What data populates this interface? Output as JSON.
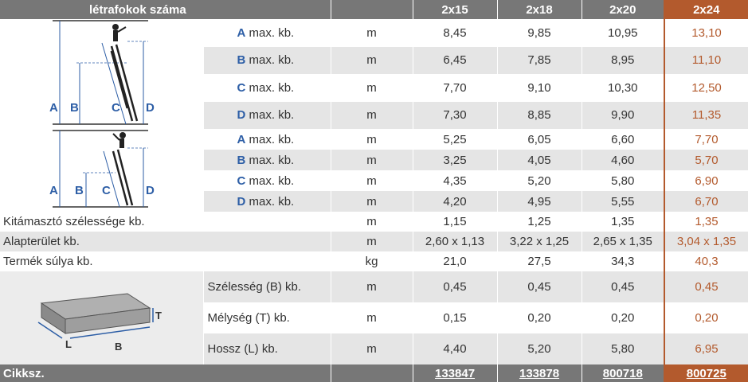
{
  "header": {
    "title": "létrafokok száma",
    "cols": [
      "2x15",
      "2x18",
      "2x20",
      "2x24"
    ]
  },
  "rows_a": [
    {
      "letter": "A",
      "label": "max. kb.",
      "unit": "m",
      "v": [
        "8,45",
        "9,85",
        "10,95",
        "13,10"
      ]
    },
    {
      "letter": "B",
      "label": "max. kb.",
      "unit": "m",
      "v": [
        "6,45",
        "7,85",
        "8,95",
        "11,10"
      ]
    },
    {
      "letter": "C",
      "label": "max. kb.",
      "unit": "m",
      "v": [
        "7,70",
        "9,10",
        "10,30",
        "12,50"
      ]
    },
    {
      "letter": "D",
      "label": "max. kb.",
      "unit": "m",
      "v": [
        "7,30",
        "8,85",
        "9,90",
        "11,35"
      ]
    }
  ],
  "rows_b": [
    {
      "letter": "A",
      "label": "max. kb.",
      "unit": "m",
      "v": [
        "5,25",
        "6,05",
        "6,60",
        "7,70"
      ]
    },
    {
      "letter": "B",
      "label": "max. kb.",
      "unit": "m",
      "v": [
        "3,25",
        "4,05",
        "4,60",
        "5,70"
      ]
    },
    {
      "letter": "C",
      "label": "max. kb.",
      "unit": "m",
      "v": [
        "4,35",
        "5,20",
        "5,80",
        "6,90"
      ]
    },
    {
      "letter": "D",
      "label": "max. kb.",
      "unit": "m",
      "v": [
        "4,20",
        "4,95",
        "5,55",
        "6,70"
      ]
    }
  ],
  "rows_c": [
    {
      "label": "Kitámasztó szélessége kb.",
      "unit": "m",
      "v": [
        "1,15",
        "1,25",
        "1,35",
        "1,35"
      ]
    },
    {
      "label": "Alapterület kb.",
      "unit": "m",
      "v": [
        "2,60 x 1,13",
        "3,22 x 1,25",
        "2,65 x 1,35",
        "3,04 x 1,35"
      ]
    },
    {
      "label": "Termék súlya kb.",
      "unit": "kg",
      "v": [
        "21,0",
        "27,5",
        "34,3",
        "40,3"
      ]
    }
  ],
  "rows_d": [
    {
      "label": "Szélesség (B) kb.",
      "unit": "m",
      "v": [
        "0,45",
        "0,45",
        "0,45",
        "0,45"
      ]
    },
    {
      "label": "Mélység (T) kb.",
      "unit": "m",
      "v": [
        "0,15",
        "0,20",
        "0,20",
        "0,20"
      ]
    },
    {
      "label": "Hossz (L) kb.",
      "unit": "m",
      "v": [
        "4,40",
        "5,20",
        "5,80",
        "6,95"
      ]
    }
  ],
  "footer": {
    "label": "Cikksz.",
    "codes": [
      "133847",
      "133878",
      "800718",
      "800725"
    ]
  },
  "diagram1": {
    "labels": [
      "A",
      "B",
      "C",
      "D"
    ]
  },
  "diagram2": {
    "labels": [
      "A",
      "B",
      "C",
      "D"
    ]
  },
  "box": {
    "labels": [
      "T",
      "L",
      "B"
    ]
  },
  "colors": {
    "header": "#777777",
    "highlight": "#b35a2d",
    "letter": "#2d5ea6",
    "stripe": "#e5e5e5"
  }
}
